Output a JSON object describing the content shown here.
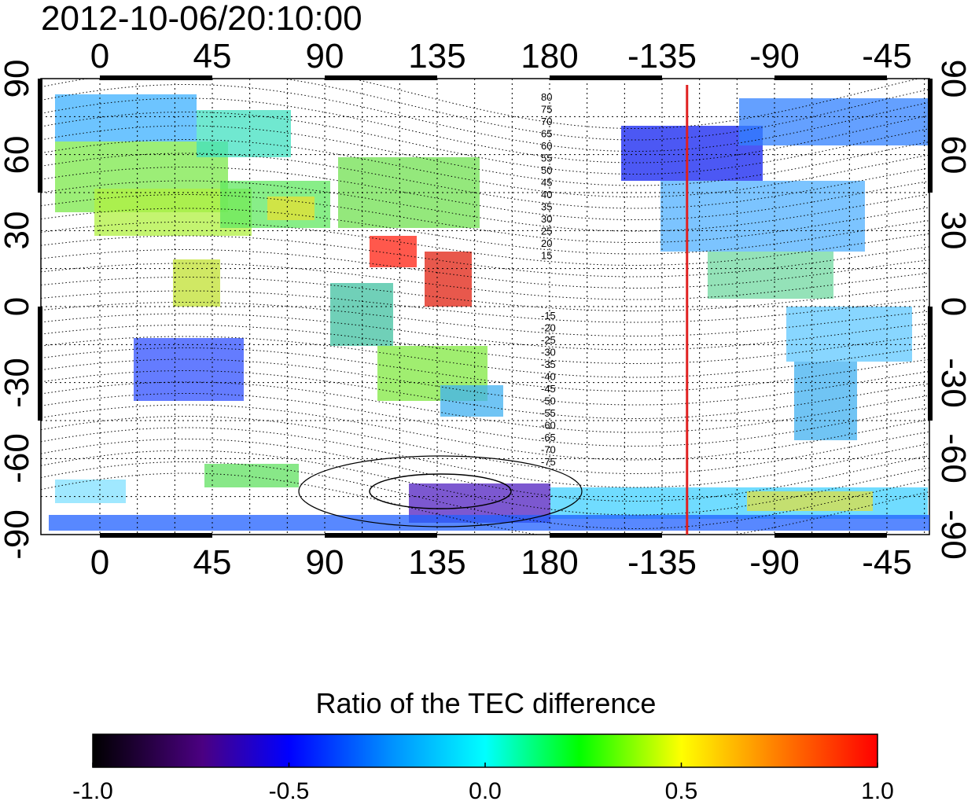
{
  "title": "2012-10-06/20:10:00",
  "map": {
    "lon_tick_labels": [
      "0",
      "45",
      "90",
      "135",
      "180",
      "-135",
      "-90",
      "-45"
    ],
    "lat_tick_labels": [
      "90",
      "60",
      "30",
      "0",
      "-30",
      "-60",
      "-90"
    ],
    "contour_labels_north": [
      "80",
      "75",
      "70",
      "65",
      "60",
      "55",
      "50",
      "45",
      "40",
      "35",
      "30",
      "25",
      "20",
      "15"
    ],
    "contour_labels_south": [
      "-15",
      "-20",
      "-25",
      "-30",
      "-35",
      "-40",
      "-45",
      "-50",
      "-55",
      "-60",
      "-65",
      "-70",
      "-75"
    ],
    "terminator_color": "#e02020",
    "terminator_lon": -125
  },
  "colorbar": {
    "title": "Ratio of the TEC difference",
    "tick_labels": [
      "-1.0",
      "-0.5",
      "0.0",
      "0.5",
      "1.0"
    ],
    "colors": [
      "#000000",
      "#4b0082",
      "#0000ff",
      "#00ffff",
      "#00ff00",
      "#ffff00",
      "#ff8000",
      "#ff0000"
    ]
  }
}
